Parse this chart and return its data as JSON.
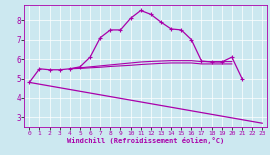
{
  "background_color": "#cce8f0",
  "line_color": "#aa00aa",
  "xlabel": "Windchill (Refroidissement éolien,°C)",
  "xlim": [
    -0.5,
    23.5
  ],
  "ylim": [
    2.5,
    8.8
  ],
  "yticks": [
    3,
    4,
    5,
    6,
    7,
    8
  ],
  "xticks": [
    0,
    1,
    2,
    3,
    4,
    5,
    6,
    7,
    8,
    9,
    10,
    11,
    12,
    13,
    14,
    15,
    16,
    17,
    18,
    19,
    20,
    21,
    22,
    23
  ],
  "curve_main": {
    "x": [
      0,
      1,
      2,
      3,
      4,
      5,
      6,
      7,
      8,
      9,
      10,
      11,
      12,
      13,
      14,
      15,
      16,
      17,
      18,
      19,
      20,
      21
    ],
    "y": [
      4.8,
      5.5,
      5.45,
      5.45,
      5.5,
      5.6,
      6.1,
      7.1,
      7.5,
      7.5,
      8.1,
      8.5,
      8.3,
      7.9,
      7.55,
      7.5,
      7.0,
      5.9,
      5.85,
      5.85,
      6.1,
      5.0
    ]
  },
  "curve_diagonal": {
    "x": [
      0,
      23
    ],
    "y": [
      4.8,
      2.7
    ]
  },
  "curve_flat1": {
    "x": [
      4,
      5,
      6,
      7,
      8,
      9,
      10,
      11,
      12,
      13,
      14,
      15,
      16,
      17,
      18,
      19,
      20
    ],
    "y": [
      5.5,
      5.55,
      5.6,
      5.65,
      5.7,
      5.75,
      5.8,
      5.85,
      5.88,
      5.9,
      5.92,
      5.92,
      5.92,
      5.87,
      5.87,
      5.87,
      5.87
    ]
  },
  "curve_flat2": {
    "x": [
      4,
      5,
      6,
      7,
      8,
      9,
      10,
      11,
      12,
      13,
      14,
      15,
      16,
      17,
      18,
      19,
      20
    ],
    "y": [
      5.5,
      5.52,
      5.55,
      5.58,
      5.62,
      5.65,
      5.68,
      5.72,
      5.75,
      5.78,
      5.8,
      5.8,
      5.8,
      5.75,
      5.75,
      5.75,
      5.75
    ]
  }
}
